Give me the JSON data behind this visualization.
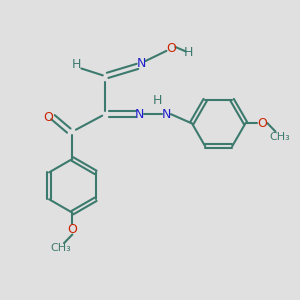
{
  "background_color": "#e0e0e0",
  "teal": "#3d7a6e",
  "blue": "#2020cc",
  "red": "#cc2200",
  "bond_lw": 1.5,
  "fig_width": 3.0,
  "fig_height": 3.0,
  "dpi": 100,
  "xlim": [
    0,
    10
  ],
  "ylim": [
    0,
    10
  ]
}
